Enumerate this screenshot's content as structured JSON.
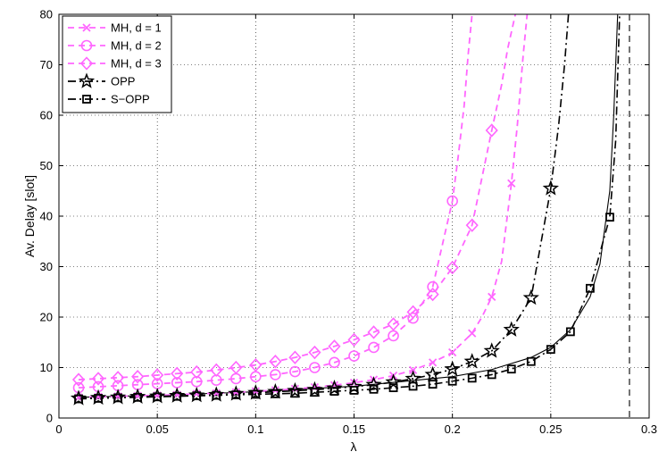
{
  "chart_data": {
    "type": "line",
    "xlabel": "λ",
    "ylabel": "Av. Delay [slot]",
    "xlim": [
      0,
      0.3
    ],
    "ylim": [
      0,
      80
    ],
    "x_ticks": [
      "0",
      "0.05",
      "0.1",
      "0.15",
      "0.2",
      "0.25",
      "0.3"
    ],
    "y_ticks": [
      "0",
      "10",
      "20",
      "30",
      "40",
      "50",
      "60",
      "70",
      "80"
    ],
    "grid": "dotted",
    "legend_position": "top-left",
    "series": [
      {
        "name": "MH, d = 1",
        "color": "#ff66ff",
        "line_style": "dashed",
        "marker": "x",
        "curve_x": [
          0.01,
          0.02,
          0.03,
          0.04,
          0.05,
          0.06,
          0.07,
          0.08,
          0.09,
          0.1,
          0.11,
          0.12,
          0.13,
          0.14,
          0.15,
          0.16,
          0.17,
          0.18,
          0.19,
          0.2,
          0.21,
          0.215,
          0.22,
          0.225,
          0.23,
          0.233,
          0.236,
          0.238
        ],
        "curve_y": [
          4.1,
          4.2,
          4.3,
          4.4,
          4.5,
          4.6,
          4.8,
          4.9,
          5.1,
          5.3,
          5.5,
          5.8,
          6.1,
          6.5,
          7,
          7.6,
          8.4,
          9.5,
          11,
          13,
          16.8,
          20,
          24,
          31,
          46.5,
          58,
          72,
          80
        ],
        "marker_x": [
          0.01,
          0.02,
          0.03,
          0.04,
          0.05,
          0.06,
          0.07,
          0.08,
          0.09,
          0.1,
          0.11,
          0.12,
          0.13,
          0.14,
          0.15,
          0.16,
          0.17,
          0.18,
          0.19,
          0.2,
          0.21,
          0.22,
          0.23
        ],
        "marker_y": [
          4.1,
          4.2,
          4.3,
          4.4,
          4.5,
          4.6,
          4.8,
          4.9,
          5.1,
          5.3,
          5.5,
          5.8,
          6.1,
          6.5,
          7,
          7.6,
          8.4,
          9.5,
          11,
          13,
          16.8,
          24,
          46.5
        ]
      },
      {
        "name": "MH, d = 2",
        "color": "#ff66ff",
        "line_style": "dashed",
        "marker": "circle",
        "curve_x": [
          0.01,
          0.02,
          0.03,
          0.04,
          0.05,
          0.06,
          0.07,
          0.08,
          0.09,
          0.1,
          0.11,
          0.12,
          0.13,
          0.14,
          0.15,
          0.16,
          0.17,
          0.18,
          0.19,
          0.2,
          0.203,
          0.206,
          0.208,
          0.21
        ],
        "curve_y": [
          6,
          6.2,
          6.4,
          6.6,
          6.8,
          7,
          7.2,
          7.5,
          7.8,
          8.2,
          8.6,
          9.2,
          10,
          11,
          12.3,
          14,
          16.3,
          19.8,
          26,
          43,
          52,
          62,
          72,
          80
        ],
        "marker_x": [
          0.01,
          0.02,
          0.03,
          0.04,
          0.05,
          0.06,
          0.07,
          0.08,
          0.09,
          0.1,
          0.11,
          0.12,
          0.13,
          0.14,
          0.15,
          0.16,
          0.17,
          0.18,
          0.19,
          0.2
        ],
        "marker_y": [
          6,
          6.2,
          6.4,
          6.6,
          6.8,
          7,
          7.2,
          7.5,
          7.8,
          8.2,
          8.6,
          9.2,
          10,
          11,
          12.3,
          14,
          16.3,
          19.8,
          26,
          43
        ]
      },
      {
        "name": "MH, d = 3",
        "color": "#ff66ff",
        "line_style": "dashed",
        "marker": "diamond",
        "curve_x": [
          0.01,
          0.02,
          0.03,
          0.04,
          0.05,
          0.06,
          0.07,
          0.08,
          0.09,
          0.1,
          0.11,
          0.12,
          0.13,
          0.14,
          0.15,
          0.16,
          0.17,
          0.18,
          0.19,
          0.2,
          0.21,
          0.22,
          0.225,
          0.228,
          0.232
        ],
        "curve_y": [
          7.6,
          7.8,
          8,
          8.2,
          8.5,
          8.8,
          9.1,
          9.5,
          10,
          10.5,
          11.2,
          12,
          13,
          14.2,
          15.5,
          17,
          18.6,
          21,
          24.5,
          29.8,
          38.2,
          57,
          66,
          73,
          80
        ],
        "marker_x": [
          0.01,
          0.02,
          0.03,
          0.04,
          0.05,
          0.06,
          0.07,
          0.08,
          0.09,
          0.1,
          0.11,
          0.12,
          0.13,
          0.14,
          0.15,
          0.16,
          0.17,
          0.18,
          0.19,
          0.2,
          0.21,
          0.22
        ],
        "marker_y": [
          7.6,
          7.8,
          8,
          8.2,
          8.5,
          8.8,
          9.1,
          9.5,
          10,
          10.5,
          11.2,
          12,
          13,
          14.2,
          15.5,
          17,
          18.6,
          21,
          24.5,
          29.8,
          38.2,
          57
        ]
      },
      {
        "name": "OPP",
        "color": "#000000",
        "line_style": "dashdot",
        "marker": "star",
        "curve_x": [
          0.01,
          0.02,
          0.03,
          0.04,
          0.05,
          0.06,
          0.07,
          0.08,
          0.09,
          0.1,
          0.11,
          0.12,
          0.13,
          0.14,
          0.15,
          0.16,
          0.17,
          0.18,
          0.19,
          0.2,
          0.21,
          0.22,
          0.23,
          0.24,
          0.25,
          0.254,
          0.257,
          0.259
        ],
        "curve_y": [
          3.9,
          4,
          4.1,
          4.2,
          4.3,
          4.4,
          4.5,
          4.6,
          4.8,
          5,
          5.2,
          5.4,
          5.6,
          5.9,
          6.2,
          6.6,
          7.1,
          7.8,
          8.6,
          9.7,
          11.2,
          13.3,
          17.5,
          23.8,
          45.5,
          58,
          70,
          80
        ],
        "marker_x": [
          0.01,
          0.02,
          0.03,
          0.04,
          0.05,
          0.06,
          0.07,
          0.08,
          0.09,
          0.1,
          0.11,
          0.12,
          0.13,
          0.14,
          0.15,
          0.16,
          0.17,
          0.18,
          0.19,
          0.2,
          0.21,
          0.22,
          0.23,
          0.24,
          0.25
        ],
        "marker_y": [
          3.9,
          4,
          4.1,
          4.2,
          4.3,
          4.4,
          4.5,
          4.6,
          4.8,
          5,
          5.2,
          5.4,
          5.6,
          5.9,
          6.2,
          6.6,
          7.1,
          7.8,
          8.6,
          9.7,
          11.2,
          13.3,
          17.5,
          23.8,
          45.5
        ]
      },
      {
        "name": "S−OPP",
        "color": "#000000",
        "line_style": "dashdot",
        "marker": "square",
        "curve_x": [
          0.01,
          0.02,
          0.03,
          0.04,
          0.05,
          0.06,
          0.07,
          0.08,
          0.09,
          0.1,
          0.11,
          0.12,
          0.13,
          0.14,
          0.15,
          0.16,
          0.17,
          0.18,
          0.19,
          0.2,
          0.21,
          0.22,
          0.23,
          0.24,
          0.25,
          0.26,
          0.27,
          0.28,
          0.283,
          0.285
        ],
        "curve_y": [
          3.8,
          3.9,
          4,
          4.1,
          4.2,
          4.3,
          4.4,
          4.5,
          4.6,
          4.7,
          4.8,
          4.9,
          5.1,
          5.3,
          5.5,
          5.7,
          6,
          6.3,
          6.7,
          7.3,
          7.9,
          8.6,
          9.7,
          11.2,
          13.6,
          17.1,
          25.7,
          39.8,
          55,
          80
        ],
        "marker_x": [
          0.01,
          0.02,
          0.03,
          0.04,
          0.05,
          0.06,
          0.07,
          0.08,
          0.09,
          0.1,
          0.11,
          0.12,
          0.13,
          0.14,
          0.15,
          0.16,
          0.17,
          0.18,
          0.19,
          0.2,
          0.21,
          0.22,
          0.23,
          0.24,
          0.25,
          0.26,
          0.27,
          0.28
        ],
        "marker_y": [
          3.8,
          3.9,
          4,
          4.1,
          4.2,
          4.3,
          4.4,
          4.5,
          4.6,
          4.7,
          4.8,
          4.9,
          5.1,
          5.3,
          5.5,
          5.7,
          6,
          6.3,
          6.7,
          7.3,
          7.9,
          8.6,
          9.7,
          11.2,
          13.6,
          17.1,
          25.7,
          39.8
        ]
      }
    ],
    "reference_curves": [
      {
        "color": "#000000",
        "line_style": "solid",
        "x": [
          0.01,
          0.05,
          0.1,
          0.15,
          0.2,
          0.22,
          0.24,
          0.25,
          0.26,
          0.27,
          0.275,
          0.28,
          0.282,
          0.284
        ],
        "y": [
          4.1,
          4.5,
          5.2,
          6.3,
          8.2,
          9.6,
          12,
          14,
          17.5,
          24,
          30.5,
          45,
          60,
          80
        ]
      }
    ],
    "reference_lines": [
      {
        "x": 0.29,
        "color": "#000000",
        "line_style": "dashed"
      }
    ]
  }
}
